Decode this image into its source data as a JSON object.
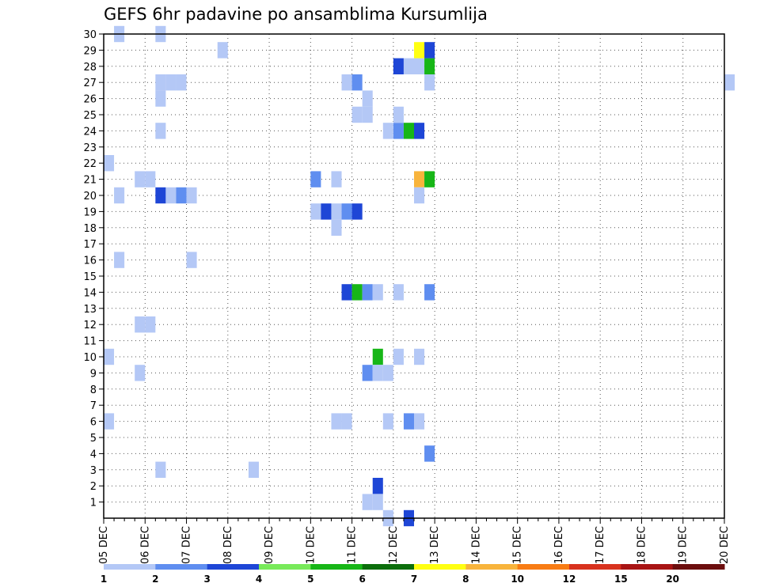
{
  "chart_data": {
    "type": "heatmap",
    "title": "GEFS 6hr padavine po ansamblima Kursumlija",
    "xlabel": "",
    "ylabel": "",
    "x_tick_labels": [
      "05 DEC",
      "06 DEC",
      "07 DEC",
      "08 DEC",
      "09 DEC",
      "10 DEC",
      "11 DEC",
      "12 DEC",
      "13 DEC",
      "14 DEC",
      "15 DEC",
      "16 DEC",
      "17 DEC",
      "18 DEC",
      "19 DEC",
      "20 DEC"
    ],
    "y_tick_labels": [
      "1",
      "2",
      "3",
      "4",
      "5",
      "6",
      "7",
      "8",
      "9",
      "10",
      "11",
      "12",
      "13",
      "14",
      "15",
      "16",
      "17",
      "18",
      "19",
      "20",
      "21",
      "22",
      "23",
      "24",
      "25",
      "26",
      "27",
      "28",
      "29",
      "30"
    ],
    "x_range_days": [
      0,
      15
    ],
    "y_range": [
      0,
      30
    ],
    "steps_per_day": 4,
    "grid": true,
    "colorbar": {
      "thresholds": [
        "1",
        "2",
        "3",
        "4",
        "5",
        "6",
        "7",
        "8",
        "10",
        "12",
        "15",
        "20"
      ],
      "colors": [
        "#b4c8f6",
        "#5f8ef0",
        "#1e46d6",
        "#78ea5a",
        "#17b617",
        "#0c6e0c",
        "#ffff12",
        "#f8b43c",
        "#f87c14",
        "#d8321e",
        "#a81414",
        "#6c0e0e"
      ]
    },
    "cells": [
      [
        1,
        30,
        1
      ],
      [
        5,
        30,
        1
      ],
      [
        11,
        29,
        1
      ],
      [
        28,
        28,
        3
      ],
      [
        29,
        28,
        1
      ],
      [
        30,
        28,
        1
      ],
      [
        31,
        28,
        5
      ],
      [
        5,
        27,
        1
      ],
      [
        6,
        27,
        1
      ],
      [
        7,
        27,
        1
      ],
      [
        23,
        27,
        1
      ],
      [
        24,
        27,
        2
      ],
      [
        31,
        27,
        1
      ],
      [
        60,
        27,
        1
      ],
      [
        5,
        26,
        1
      ],
      [
        25,
        26,
        1
      ],
      [
        24,
        25,
        1
      ],
      [
        25,
        25,
        1
      ],
      [
        28,
        24,
        2
      ],
      [
        29,
        24,
        5
      ],
      [
        30,
        24,
        3
      ],
      [
        5,
        24,
        1
      ],
      [
        0,
        22,
        1
      ],
      [
        3,
        21,
        1
      ],
      [
        4,
        21,
        1
      ],
      [
        20,
        21,
        2
      ],
      [
        22,
        21,
        1
      ],
      [
        1,
        20,
        1
      ],
      [
        5,
        20,
        3
      ],
      [
        6,
        20,
        1
      ],
      [
        7,
        20,
        2
      ],
      [
        8,
        20,
        1
      ],
      [
        20,
        19,
        1
      ],
      [
        21,
        19,
        3
      ],
      [
        22,
        19,
        1
      ],
      [
        23,
        19,
        2
      ],
      [
        24,
        19,
        3
      ],
      [
        22,
        18,
        1
      ],
      [
        1,
        16,
        1
      ],
      [
        8,
        16,
        1
      ],
      [
        23,
        14,
        3
      ],
      [
        24,
        14,
        5
      ],
      [
        25,
        14,
        2
      ],
      [
        26,
        14,
        1
      ],
      [
        28,
        14,
        1
      ],
      [
        31,
        14,
        2
      ],
      [
        3,
        12,
        1
      ],
      [
        4,
        12,
        1
      ],
      [
        0,
        10,
        1
      ],
      [
        26,
        10,
        5
      ],
      [
        28,
        10,
        1
      ],
      [
        30,
        10,
        1
      ],
      [
        3,
        9,
        1
      ],
      [
        25,
        9,
        2
      ],
      [
        26,
        9,
        1
      ],
      [
        27,
        9,
        1
      ],
      [
        0,
        6,
        1
      ],
      [
        22,
        6,
        1
      ],
      [
        23,
        6,
        1
      ],
      [
        27,
        6,
        1
      ],
      [
        29,
        6,
        2
      ],
      [
        30,
        6,
        1
      ],
      [
        31,
        4,
        2
      ],
      [
        5,
        3,
        1
      ],
      [
        14,
        3,
        1
      ],
      [
        26,
        2,
        3
      ],
      [
        25,
        1,
        1
      ],
      [
        26,
        1,
        1
      ],
      [
        27,
        0,
        1
      ],
      [
        29,
        0,
        3
      ],
      [
        27,
        24,
        1
      ],
      [
        28,
        25,
        1
      ],
      [
        30,
        29,
        7
      ],
      [
        31,
        29,
        3
      ],
      [
        30,
        21,
        8
      ],
      [
        31,
        21,
        5
      ],
      [
        30,
        20,
        1
      ]
    ]
  }
}
